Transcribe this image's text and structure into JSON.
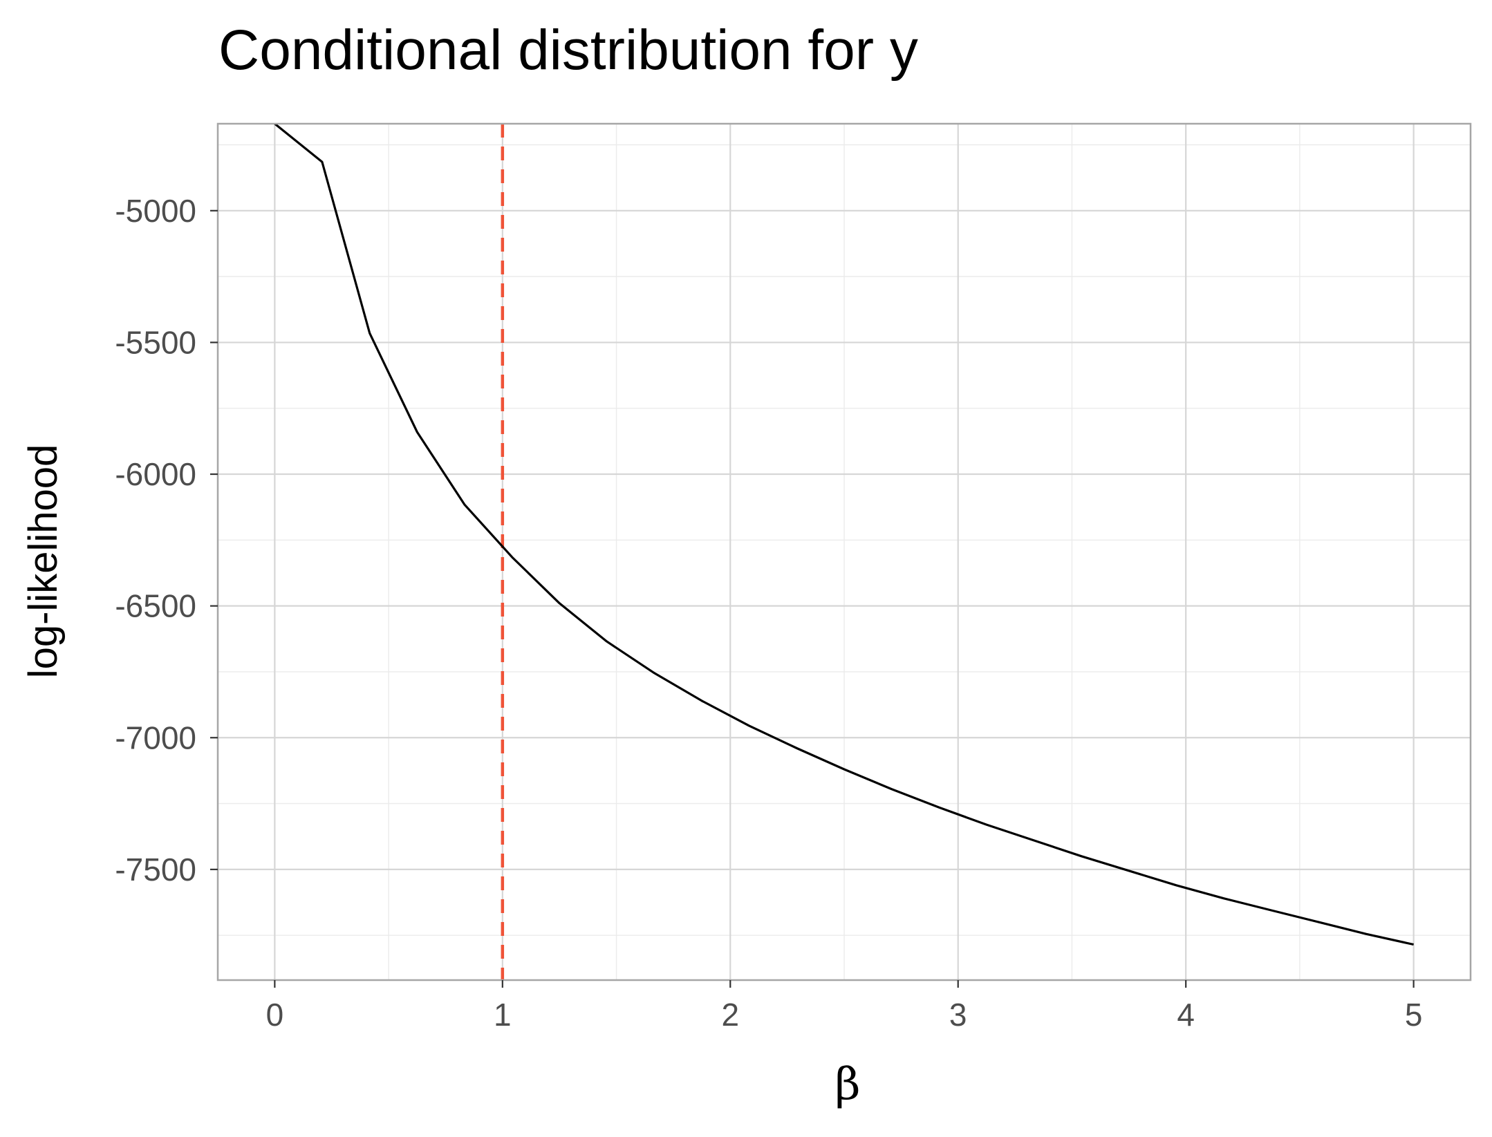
{
  "chart_data": {
    "type": "line",
    "title": "Conditional distribution for  y",
    "xlabel": "β",
    "ylabel": "log-likelihood",
    "xlim": [
      -0.25,
      5.25
    ],
    "ylim": [
      -7920,
      -4670
    ],
    "x_ticks": [
      0,
      1,
      2,
      3,
      4,
      5
    ],
    "y_ticks": [
      -5000,
      -5500,
      -6000,
      -6500,
      -7000,
      -7500
    ],
    "grid": true,
    "legend": "none",
    "reference_line": {
      "x": 1,
      "color": "#ef5338",
      "style": "dashed"
    },
    "series": [
      {
        "color": "#000000",
        "x": [
          0,
          0.208,
          0.417,
          0.625,
          0.833,
          1.042,
          1.25,
          1.458,
          1.667,
          1.875,
          2.083,
          2.292,
          2.5,
          2.708,
          2.917,
          3.125,
          3.333,
          3.542,
          3.75,
          3.958,
          4.167,
          4.375,
          4.583,
          4.792,
          5
        ],
        "values": [
          -4670,
          -4815,
          -5465,
          -5840,
          -6115,
          -6315,
          -6490,
          -6635,
          -6755,
          -6860,
          -6955,
          -7040,
          -7120,
          -7195,
          -7265,
          -7330,
          -7390,
          -7450,
          -7505,
          -7560,
          -7610,
          -7655,
          -7700,
          -7745,
          -7785
        ]
      }
    ]
  }
}
